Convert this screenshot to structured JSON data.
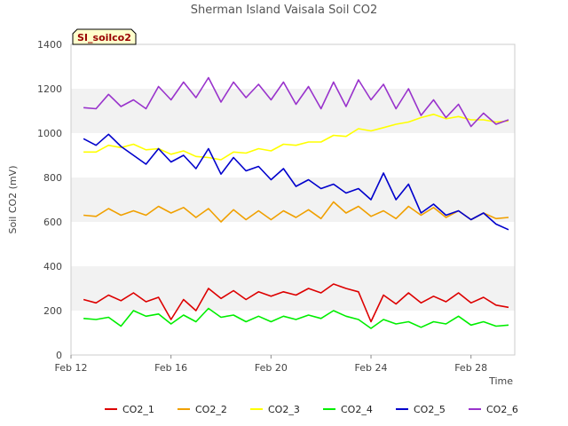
{
  "chart_data": {
    "type": "line",
    "title": "Sherman Island Vaisala Soil CO2",
    "badge": "SI_soilco2",
    "xlabel": "Time",
    "ylabel": "Soil CO2 (mV)",
    "ylim": [
      0,
      1400
    ],
    "xlim": [
      "Feb 12",
      "Feb 29 18:00"
    ],
    "yticks": [
      "0",
      "200",
      "400",
      "600",
      "800",
      "1000",
      "1200",
      "1400"
    ],
    "xticks": [
      {
        "label": "Feb 12",
        "day": 12
      },
      {
        "label": "Feb 16",
        "day": 16
      },
      {
        "label": "Feb 20",
        "day": 20
      },
      {
        "label": "Feb 24",
        "day": 24
      },
      {
        "label": "Feb 28",
        "day": 28
      }
    ],
    "grid": "horizontal alternating bands",
    "legend": "bottom",
    "x": [
      "Feb 12 12:00",
      "Feb 13",
      "Feb 13 12:00",
      "Feb 14",
      "Feb 14 12:00",
      "Feb 15",
      "Feb 15 12:00",
      "Feb 16",
      "Feb 16 12:00",
      "Feb 17",
      "Feb 17 12:00",
      "Feb 18",
      "Feb 18 12:00",
      "Feb 19",
      "Feb 19 12:00",
      "Feb 20",
      "Feb 20 12:00",
      "Feb 21",
      "Feb 21 12:00",
      "Feb 22",
      "Feb 22 12:00",
      "Feb 23",
      "Feb 23 12:00",
      "Feb 24",
      "Feb 24 12:00",
      "Feb 25",
      "Feb 25 12:00",
      "Feb 26",
      "Feb 26 12:00",
      "Feb 27",
      "Feb 27 12:00",
      "Feb 28",
      "Feb 28 12:00",
      "Feb 29",
      "Feb 29 12:00"
    ],
    "series": [
      {
        "name": "CO2_1",
        "color": "#dd0000",
        "values": [
          250,
          235,
          270,
          245,
          280,
          240,
          260,
          160,
          250,
          200,
          300,
          255,
          290,
          250,
          285,
          265,
          285,
          270,
          300,
          280,
          320,
          300,
          285,
          150,
          270,
          230,
          280,
          235,
          265,
          240,
          280,
          235,
          260,
          225,
          215
        ]
      },
      {
        "name": "CO2_2",
        "color": "#f0a000",
        "values": [
          630,
          625,
          660,
          630,
          650,
          630,
          670,
          640,
          665,
          620,
          660,
          600,
          655,
          610,
          650,
          610,
          650,
          620,
          655,
          615,
          690,
          640,
          670,
          625,
          650,
          615,
          670,
          630,
          665,
          620,
          650,
          610,
          640,
          615,
          620
        ]
      },
      {
        "name": "CO2_3",
        "color": "#ffff00",
        "values": [
          915,
          915,
          945,
          935,
          950,
          925,
          930,
          905,
          920,
          895,
          890,
          880,
          915,
          910,
          930,
          920,
          950,
          945,
          960,
          960,
          990,
          985,
          1020,
          1010,
          1025,
          1040,
          1050,
          1070,
          1085,
          1065,
          1075,
          1060,
          1060,
          1050,
          1055
        ]
      },
      {
        "name": "CO2_4",
        "color": "#00ee00",
        "values": [
          165,
          160,
          170,
          130,
          200,
          175,
          185,
          140,
          180,
          150,
          210,
          170,
          180,
          150,
          175,
          150,
          175,
          160,
          180,
          165,
          200,
          175,
          160,
          120,
          160,
          140,
          150,
          125,
          150,
          140,
          175,
          135,
          150,
          130,
          135
        ]
      },
      {
        "name": "CO2_5",
        "color": "#0000cc",
        "values": [
          975,
          945,
          995,
          940,
          900,
          860,
          930,
          870,
          900,
          840,
          930,
          815,
          890,
          830,
          850,
          790,
          840,
          760,
          790,
          750,
          770,
          730,
          750,
          700,
          820,
          700,
          770,
          640,
          680,
          630,
          650,
          610,
          640,
          590,
          565
        ]
      },
      {
        "name": "CO2_6",
        "color": "#9933cc",
        "values": [
          1115,
          1110,
          1175,
          1120,
          1150,
          1110,
          1210,
          1150,
          1230,
          1160,
          1250,
          1140,
          1230,
          1160,
          1220,
          1150,
          1230,
          1130,
          1210,
          1110,
          1230,
          1120,
          1240,
          1150,
          1220,
          1110,
          1200,
          1080,
          1150,
          1070,
          1130,
          1030,
          1090,
          1040,
          1060
        ]
      }
    ]
  }
}
